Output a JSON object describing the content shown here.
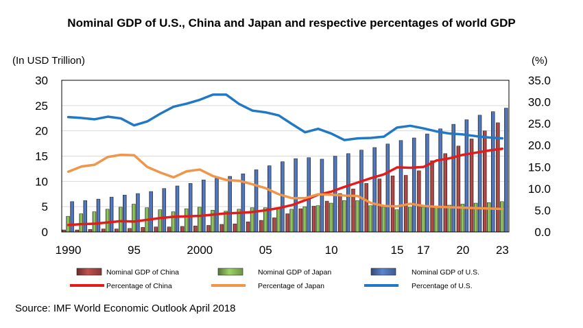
{
  "title": "Nominal GDP of U.S., China and Japan and respective percentages of world GDP",
  "source": "Source: IMF World Economic Outlook April 2018",
  "chart_data": {
    "type": "bar+line",
    "title": "Nominal GDP of U.S., China and Japan and respective percentages of world GDP",
    "left_axis_unit": "(In USD Trillion)",
    "right_axis_unit": "(%)",
    "ylim_left": [
      0,
      30
    ],
    "ylim_right": [
      0,
      35
    ],
    "left_ticks": [
      "0",
      "5",
      "10",
      "15",
      "20",
      "25",
      "30"
    ],
    "right_ticks": [
      "0.0",
      "5.0",
      "10.0",
      "15.0",
      "20.0",
      "25.0",
      "30.0",
      "35.0"
    ],
    "x_years": [
      1990,
      1991,
      1992,
      1993,
      1994,
      1995,
      1996,
      1997,
      1998,
      1999,
      2000,
      2001,
      2002,
      2003,
      2004,
      2005,
      2006,
      2007,
      2008,
      2009,
      2010,
      2011,
      2012,
      2013,
      2014,
      2015,
      2016,
      2017,
      2018,
      2019,
      2020,
      2021,
      2022,
      2023
    ],
    "x_tick_labels": [
      {
        "year": 1990,
        "label": "1990"
      },
      {
        "year": 1995,
        "label": "95"
      },
      {
        "year": 2000,
        "label": "2000"
      },
      {
        "year": 2005,
        "label": "05"
      },
      {
        "year": 2010,
        "label": "10"
      },
      {
        "year": 2015,
        "label": "15"
      },
      {
        "year": 2017,
        "label": "17"
      },
      {
        "year": 2020,
        "label": "20"
      },
      {
        "year": 2023,
        "label": "23"
      }
    ],
    "bar_series": [
      {
        "name": "Nominal GDP of China",
        "color": "#c0504d",
        "values": [
          0.4,
          0.4,
          0.5,
          0.6,
          0.6,
          0.7,
          0.9,
          1.0,
          1.0,
          1.1,
          1.2,
          1.3,
          1.5,
          1.6,
          2.0,
          2.3,
          2.8,
          3.6,
          4.6,
          5.1,
          6.1,
          7.6,
          8.5,
          9.6,
          10.5,
          11.1,
          11.2,
          12.1,
          14.1,
          15.5,
          17.0,
          18.4,
          20.0,
          21.6
        ]
      },
      {
        "name": "Nominal GDP of Japan",
        "color": "#9bd364",
        "values": [
          3.1,
          3.6,
          4.0,
          4.5,
          4.9,
          5.5,
          4.8,
          4.4,
          4.0,
          4.6,
          4.9,
          4.3,
          4.1,
          4.5,
          4.8,
          4.8,
          4.6,
          4.5,
          5.0,
          5.2,
          5.7,
          6.2,
          6.2,
          5.2,
          4.9,
          4.4,
          4.9,
          4.9,
          5.1,
          5.3,
          5.5,
          5.7,
          5.8,
          6.0
        ]
      },
      {
        "name": "Nominal GDP of U.S.",
        "color": "#5a84cf",
        "values": [
          6.0,
          6.2,
          6.5,
          6.9,
          7.3,
          7.6,
          8.0,
          8.6,
          9.1,
          9.6,
          10.3,
          10.6,
          11.0,
          11.5,
          12.3,
          13.1,
          13.9,
          14.5,
          14.7,
          14.4,
          15.0,
          15.5,
          16.2,
          16.7,
          17.4,
          18.1,
          18.6,
          19.4,
          20.4,
          21.3,
          22.2,
          23.1,
          23.8,
          24.5
        ]
      }
    ],
    "line_series": [
      {
        "name": "Percentage of China",
        "color": "#e31b1b",
        "values": [
          1.6,
          1.8,
          1.9,
          2.2,
          2.5,
          2.4,
          2.8,
          3.2,
          3.5,
          3.6,
          3.7,
          4.0,
          4.3,
          4.4,
          4.6,
          5.0,
          5.5,
          6.2,
          7.3,
          8.6,
          9.3,
          10.4,
          11.4,
          12.4,
          13.3,
          14.9,
          14.8,
          15.0,
          16.5,
          17.0,
          17.8,
          18.3,
          18.8,
          19.2
        ]
      },
      {
        "name": "Percentage of Japan",
        "color": "#f0954a",
        "values": [
          13.9,
          15.1,
          15.5,
          17.3,
          17.8,
          17.7,
          15.0,
          13.7,
          12.6,
          14.0,
          14.4,
          12.9,
          12.0,
          11.8,
          11.0,
          10.1,
          8.7,
          7.8,
          7.8,
          8.7,
          8.6,
          8.4,
          8.3,
          6.7,
          6.0,
          5.9,
          6.5,
          6.0,
          5.8,
          5.7,
          5.6,
          5.5,
          5.4,
          5.3
        ]
      },
      {
        "name": "Percentage of U.S.",
        "color": "#2178c4",
        "values": [
          26.5,
          26.3,
          26.0,
          26.6,
          26.2,
          24.6,
          25.5,
          27.3,
          28.9,
          29.6,
          30.5,
          31.7,
          31.7,
          29.5,
          28.0,
          27.6,
          26.9,
          24.9,
          23.0,
          23.8,
          22.7,
          21.2,
          21.6,
          21.7,
          22.0,
          24.1,
          24.5,
          23.9,
          23.2,
          22.7,
          22.5,
          22.1,
          21.8,
          21.6
        ]
      }
    ]
  }
}
